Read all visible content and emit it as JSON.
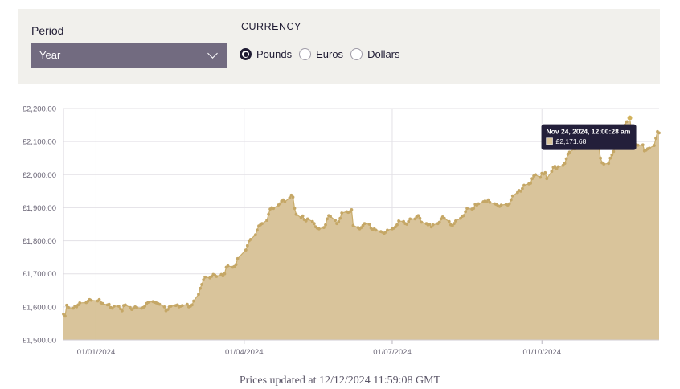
{
  "controls": {
    "period_label": "Period",
    "period_value": "Year",
    "period_icon": "chevron-down-icon",
    "currency_label": "CURRENCY",
    "currencies": [
      {
        "label": "Pounds",
        "checked": true
      },
      {
        "label": "Euros",
        "checked": false
      },
      {
        "label": "Dollars",
        "checked": false
      }
    ]
  },
  "colors": {
    "area": "#d9c49b",
    "line": "#c9ac6a",
    "dot": "#c5a766",
    "tooltip_bg": "#231f3a"
  },
  "tooltip": {
    "title": "Nov 24, 2024, 12:00:28 am",
    "value": "£2,171.68"
  },
  "footer": {
    "text": "Prices updated at 12/12/2024 11:59:08 GMT"
  },
  "chart_data": {
    "type": "area",
    "ylim": [
      1500,
      2200
    ],
    "xlim": [
      "2023-12-12",
      "2024-12-12"
    ],
    "grid": true,
    "y_ticks": [
      {
        "value": 1500,
        "label": "£1,500.00"
      },
      {
        "value": 1600,
        "label": "£1,600.00"
      },
      {
        "value": 1700,
        "label": "£1,700.00"
      },
      {
        "value": 1800,
        "label": "£1,800.00"
      },
      {
        "value": 1900,
        "label": "£1,900.00"
      },
      {
        "value": 2000,
        "label": "£2,000.00"
      },
      {
        "value": 2100,
        "label": "£2,100.00"
      },
      {
        "value": 2200,
        "label": "£2,200.00"
      }
    ],
    "x_ticks": [
      {
        "date": "2024-01-01",
        "label": "01/01/2024"
      },
      {
        "date": "2024-04-01",
        "label": "01/04/2024"
      },
      {
        "date": "2024-07-01",
        "label": "01/07/2024"
      },
      {
        "date": "2024-10-01",
        "label": "01/10/2024"
      }
    ],
    "crosshair_date": "2024-01-01",
    "highlight": {
      "date": "2024-11-24",
      "value": 2171.68
    },
    "points": [
      [
        "2023-12-12",
        1578
      ],
      [
        "2023-12-13",
        1572
      ],
      [
        "2023-12-14",
        1605
      ],
      [
        "2023-12-15",
        1598
      ],
      [
        "2023-12-18",
        1596
      ],
      [
        "2023-12-19",
        1602
      ],
      [
        "2023-12-20",
        1600
      ],
      [
        "2023-12-21",
        1606
      ],
      [
        "2023-12-22",
        1612
      ],
      [
        "2023-12-26",
        1613
      ],
      [
        "2023-12-27",
        1617
      ],
      [
        "2023-12-28",
        1622
      ],
      [
        "2023-12-29",
        1620
      ],
      [
        "2024-01-02",
        1618
      ],
      [
        "2024-01-03",
        1622
      ],
      [
        "2024-01-04",
        1612
      ],
      [
        "2024-01-05",
        1610
      ],
      [
        "2024-01-08",
        1606
      ],
      [
        "2024-01-09",
        1608
      ],
      [
        "2024-01-10",
        1598
      ],
      [
        "2024-01-11",
        1596
      ],
      [
        "2024-01-12",
        1602
      ],
      [
        "2024-01-15",
        1602
      ],
      [
        "2024-01-16",
        1594
      ],
      [
        "2024-01-17",
        1588
      ],
      [
        "2024-01-18",
        1604
      ],
      [
        "2024-01-19",
        1606
      ],
      [
        "2024-01-22",
        1598
      ],
      [
        "2024-01-23",
        1592
      ],
      [
        "2024-01-24",
        1596
      ],
      [
        "2024-01-25",
        1600
      ],
      [
        "2024-01-26",
        1598
      ],
      [
        "2024-01-29",
        1596
      ],
      [
        "2024-01-30",
        1598
      ],
      [
        "2024-01-31",
        1602
      ],
      [
        "2024-02-01",
        1610
      ],
      [
        "2024-02-02",
        1614
      ],
      [
        "2024-02-05",
        1616
      ],
      [
        "2024-02-06",
        1614
      ],
      [
        "2024-02-07",
        1612
      ],
      [
        "2024-02-08",
        1610
      ],
      [
        "2024-02-09",
        1608
      ],
      [
        "2024-02-12",
        1600
      ],
      [
        "2024-02-13",
        1588
      ],
      [
        "2024-02-14",
        1592
      ],
      [
        "2024-02-15",
        1600
      ],
      [
        "2024-02-16",
        1602
      ],
      [
        "2024-02-19",
        1604
      ],
      [
        "2024-02-20",
        1606
      ],
      [
        "2024-02-21",
        1600
      ],
      [
        "2024-02-22",
        1602
      ],
      [
        "2024-02-23",
        1604
      ],
      [
        "2024-02-26",
        1608
      ],
      [
        "2024-02-27",
        1600
      ],
      [
        "2024-02-28",
        1602
      ],
      [
        "2024-02-29",
        1606
      ],
      [
        "2024-03-01",
        1618
      ],
      [
        "2024-03-04",
        1638
      ],
      [
        "2024-03-05",
        1656
      ],
      [
        "2024-03-06",
        1668
      ],
      [
        "2024-03-07",
        1682
      ],
      [
        "2024-03-08",
        1690
      ],
      [
        "2024-03-11",
        1688
      ],
      [
        "2024-03-12",
        1692
      ],
      [
        "2024-03-13",
        1698
      ],
      [
        "2024-03-14",
        1696
      ],
      [
        "2024-03-15",
        1692
      ],
      [
        "2024-03-18",
        1698
      ],
      [
        "2024-03-19",
        1694
      ],
      [
        "2024-03-20",
        1700
      ],
      [
        "2024-03-21",
        1720
      ],
      [
        "2024-03-22",
        1724
      ],
      [
        "2024-03-25",
        1720
      ],
      [
        "2024-03-26",
        1722
      ],
      [
        "2024-03-27",
        1728
      ],
      [
        "2024-03-28",
        1746
      ],
      [
        "2024-04-02",
        1772
      ],
      [
        "2024-04-03",
        1785
      ],
      [
        "2024-04-04",
        1800
      ],
      [
        "2024-04-05",
        1804
      ],
      [
        "2024-04-08",
        1818
      ],
      [
        "2024-04-09",
        1832
      ],
      [
        "2024-04-10",
        1845
      ],
      [
        "2024-04-11",
        1848
      ],
      [
        "2024-04-12",
        1852
      ],
      [
        "2024-04-15",
        1862
      ],
      [
        "2024-04-16",
        1880
      ],
      [
        "2024-04-17",
        1896
      ],
      [
        "2024-04-18",
        1900
      ],
      [
        "2024-04-19",
        1898
      ],
      [
        "2024-04-22",
        1908
      ],
      [
        "2024-04-23",
        1912
      ],
      [
        "2024-04-24",
        1920
      ],
      [
        "2024-04-25",
        1924
      ],
      [
        "2024-04-26",
        1918
      ],
      [
        "2024-04-29",
        1930
      ],
      [
        "2024-04-30",
        1938
      ],
      [
        "2024-05-01",
        1932
      ],
      [
        "2024-05-02",
        1898
      ],
      [
        "2024-05-03",
        1880
      ],
      [
        "2024-05-06",
        1870
      ],
      [
        "2024-05-07",
        1875
      ],
      [
        "2024-05-08",
        1864
      ],
      [
        "2024-05-09",
        1860
      ],
      [
        "2024-05-10",
        1866
      ],
      [
        "2024-05-13",
        1858
      ],
      [
        "2024-05-14",
        1852
      ],
      [
        "2024-05-15",
        1842
      ],
      [
        "2024-05-16",
        1838
      ],
      [
        "2024-05-17",
        1836
      ],
      [
        "2024-05-20",
        1840
      ],
      [
        "2024-05-21",
        1848
      ],
      [
        "2024-05-22",
        1866
      ],
      [
        "2024-05-23",
        1876
      ],
      [
        "2024-05-24",
        1874
      ],
      [
        "2024-05-27",
        1862
      ],
      [
        "2024-05-28",
        1852
      ],
      [
        "2024-05-29",
        1858
      ],
      [
        "2024-05-30",
        1868
      ],
      [
        "2024-05-31",
        1884
      ],
      [
        "2024-06-03",
        1888
      ],
      [
        "2024-06-04",
        1886
      ],
      [
        "2024-06-05",
        1888
      ],
      [
        "2024-06-06",
        1894
      ],
      [
        "2024-06-07",
        1846
      ],
      [
        "2024-06-10",
        1840
      ],
      [
        "2024-06-11",
        1836
      ],
      [
        "2024-06-12",
        1840
      ],
      [
        "2024-06-13",
        1846
      ],
      [
        "2024-06-14",
        1852
      ],
      [
        "2024-06-17",
        1850
      ],
      [
        "2024-06-18",
        1838
      ],
      [
        "2024-06-19",
        1834
      ],
      [
        "2024-06-20",
        1836
      ],
      [
        "2024-06-21",
        1832
      ],
      [
        "2024-06-24",
        1828
      ],
      [
        "2024-06-25",
        1826
      ],
      [
        "2024-06-26",
        1822
      ],
      [
        "2024-06-27",
        1826
      ],
      [
        "2024-06-28",
        1832
      ],
      [
        "2024-07-01",
        1836
      ],
      [
        "2024-07-02",
        1838
      ],
      [
        "2024-07-03",
        1842
      ],
      [
        "2024-07-04",
        1848
      ],
      [
        "2024-07-05",
        1860
      ],
      [
        "2024-07-08",
        1858
      ],
      [
        "2024-07-09",
        1852
      ],
      [
        "2024-07-10",
        1850
      ],
      [
        "2024-07-11",
        1858
      ],
      [
        "2024-07-12",
        1866
      ],
      [
        "2024-07-15",
        1866
      ],
      [
        "2024-07-16",
        1872
      ],
      [
        "2024-07-17",
        1876
      ],
      [
        "2024-07-18",
        1868
      ],
      [
        "2024-07-19",
        1856
      ],
      [
        "2024-07-22",
        1852
      ],
      [
        "2024-07-23",
        1848
      ],
      [
        "2024-07-24",
        1850
      ],
      [
        "2024-07-25",
        1842
      ],
      [
        "2024-07-26",
        1848
      ],
      [
        "2024-07-29",
        1852
      ],
      [
        "2024-07-30",
        1856
      ],
      [
        "2024-07-31",
        1866
      ],
      [
        "2024-08-01",
        1872
      ],
      [
        "2024-08-02",
        1868
      ],
      [
        "2024-08-05",
        1858
      ],
      [
        "2024-08-06",
        1848
      ],
      [
        "2024-08-07",
        1846
      ],
      [
        "2024-08-08",
        1852
      ],
      [
        "2024-08-09",
        1860
      ],
      [
        "2024-08-12",
        1868
      ],
      [
        "2024-08-13",
        1874
      ],
      [
        "2024-08-14",
        1876
      ],
      [
        "2024-08-15",
        1888
      ],
      [
        "2024-08-16",
        1898
      ],
      [
        "2024-08-19",
        1896
      ],
      [
        "2024-08-20",
        1898
      ],
      [
        "2024-08-21",
        1910
      ],
      [
        "2024-08-22",
        1908
      ],
      [
        "2024-08-23",
        1912
      ],
      [
        "2024-08-26",
        1918
      ],
      [
        "2024-08-27",
        1920
      ],
      [
        "2024-08-28",
        1918
      ],
      [
        "2024-08-29",
        1924
      ],
      [
        "2024-08-30",
        1916
      ],
      [
        "2024-09-02",
        1912
      ],
      [
        "2024-09-03",
        1910
      ],
      [
        "2024-09-04",
        1906
      ],
      [
        "2024-09-05",
        1904
      ],
      [
        "2024-09-06",
        1908
      ],
      [
        "2024-09-09",
        1910
      ],
      [
        "2024-09-10",
        1908
      ],
      [
        "2024-09-11",
        1912
      ],
      [
        "2024-09-12",
        1924
      ],
      [
        "2024-09-13",
        1936
      ],
      [
        "2024-09-16",
        1946
      ],
      [
        "2024-09-17",
        1952
      ],
      [
        "2024-09-18",
        1950
      ],
      [
        "2024-09-19",
        1958
      ],
      [
        "2024-09-20",
        1968
      ],
      [
        "2024-09-23",
        1972
      ],
      [
        "2024-09-24",
        1974
      ],
      [
        "2024-09-25",
        1988
      ],
      [
        "2024-09-26",
        1996
      ],
      [
        "2024-09-27",
        2000
      ],
      [
        "2024-09-30",
        1992
      ],
      [
        "2024-10-01",
        2004
      ],
      [
        "2024-10-02",
        2002
      ],
      [
        "2024-10-03",
        2006
      ],
      [
        "2024-10-04",
        1988
      ],
      [
        "2024-10-07",
        2010
      ],
      [
        "2024-10-08",
        2022
      ],
      [
        "2024-10-09",
        2025
      ],
      [
        "2024-10-10",
        2018
      ],
      [
        "2024-10-11",
        2024
      ],
      [
        "2024-10-14",
        2028
      ],
      [
        "2024-10-15",
        2034
      ],
      [
        "2024-10-16",
        2048
      ],
      [
        "2024-10-17",
        2062
      ],
      [
        "2024-10-18",
        2068
      ],
      [
        "2024-10-21",
        2078
      ],
      [
        "2024-10-22",
        2090
      ],
      [
        "2024-10-23",
        2094
      ],
      [
        "2024-10-24",
        2092
      ],
      [
        "2024-10-25",
        2098
      ],
      [
        "2024-10-28",
        2106
      ],
      [
        "2024-10-29",
        2112
      ],
      [
        "2024-10-30",
        2116
      ],
      [
        "2024-10-31",
        2116
      ],
      [
        "2024-11-01",
        2108
      ],
      [
        "2024-11-04",
        2096
      ],
      [
        "2024-11-05",
        2082
      ],
      [
        "2024-11-06",
        2050
      ],
      [
        "2024-11-07",
        2036
      ],
      [
        "2024-11-08",
        2032
      ],
      [
        "2024-11-11",
        2034
      ],
      [
        "2024-11-12",
        2050
      ],
      [
        "2024-11-13",
        2060
      ],
      [
        "2024-11-14",
        2070
      ],
      [
        "2024-11-15",
        2080
      ],
      [
        "2024-11-18",
        2112
      ],
      [
        "2024-11-19",
        2125
      ],
      [
        "2024-11-20",
        2138
      ],
      [
        "2024-11-21",
        2150
      ],
      [
        "2024-11-22",
        2160
      ],
      [
        "2024-11-24",
        2171.68
      ],
      [
        "2024-11-25",
        2132
      ],
      [
        "2024-11-26",
        2094
      ],
      [
        "2024-11-27",
        2088
      ],
      [
        "2024-11-28",
        2090
      ],
      [
        "2024-11-29",
        2089
      ],
      [
        "2024-12-02",
        2090
      ],
      [
        "2024-12-03",
        2072
      ],
      [
        "2024-12-04",
        2074
      ],
      [
        "2024-12-05",
        2078
      ],
      [
        "2024-12-06",
        2080
      ],
      [
        "2024-12-09",
        2088
      ],
      [
        "2024-12-10",
        2110
      ],
      [
        "2024-12-11",
        2130
      ],
      [
        "2024-12-12",
        2126
      ]
    ]
  }
}
